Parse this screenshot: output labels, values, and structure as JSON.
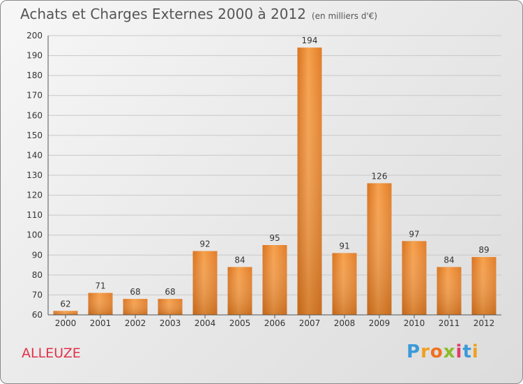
{
  "title": "Achats et Charges Externes 2000 à 2012",
  "unit_note": "(en milliers d'€)",
  "place_label": "ALLEUZE",
  "logo": {
    "letters": [
      "P",
      "r",
      "o",
      "x",
      "i",
      "t",
      "i"
    ],
    "colors": [
      "#3a9ad9",
      "#f0a020",
      "#f07020",
      "#8bbd2a",
      "#e23a6c",
      "#3a9ad9",
      "#f0a020"
    ]
  },
  "colors": {
    "bar": "#f0923a",
    "bar_dark": "#d06a18",
    "grid": "#c8c8c8"
  },
  "chart_data": {
    "type": "bar",
    "title": "Achats et Charges Externes 2000 à 2012",
    "subtitle": "(en milliers d'€)",
    "xlabel": "",
    "ylabel": "",
    "categories": [
      "2000",
      "2001",
      "2002",
      "2003",
      "2004",
      "2005",
      "2006",
      "2007",
      "2008",
      "2009",
      "2010",
      "2011",
      "2012"
    ],
    "values": [
      62,
      71,
      68,
      68,
      92,
      84,
      95,
      194,
      91,
      126,
      97,
      84,
      89
    ],
    "ylim": [
      60,
      200
    ],
    "yticks": [
      60,
      70,
      80,
      90,
      100,
      110,
      120,
      130,
      140,
      150,
      160,
      170,
      180,
      190,
      200
    ],
    "grid": true,
    "data_labels": true
  }
}
